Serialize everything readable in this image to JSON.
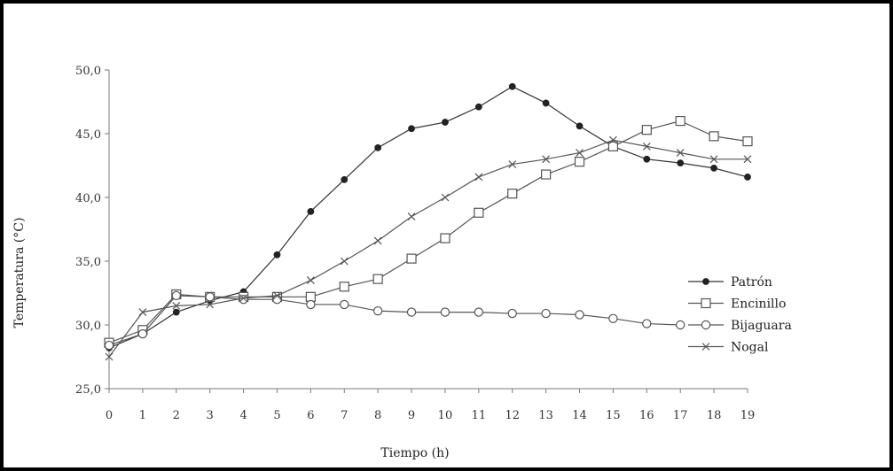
{
  "chart_data": {
    "type": "line",
    "title": "",
    "xlabel": "Tiempo (h)",
    "ylabel": "Temperatura (°C)",
    "x": [
      0,
      1,
      2,
      3,
      4,
      5,
      6,
      7,
      8,
      9,
      10,
      11,
      12,
      13,
      14,
      15,
      16,
      17,
      18,
      19
    ],
    "x_tick_labels": [
      "0",
      "1",
      "2",
      "3",
      "4",
      "5",
      "6",
      "7",
      "8",
      "9",
      "10",
      "11",
      "12",
      "13",
      "14",
      "15",
      "16",
      "17",
      "18",
      "19"
    ],
    "xlim": [
      0,
      19
    ],
    "ylim": [
      25,
      50
    ],
    "y_ticks": [
      25,
      30,
      35,
      40,
      45,
      50
    ],
    "y_tick_labels": [
      "25,0",
      "30,0",
      "35,0",
      "40,0",
      "45,0",
      "50,0"
    ],
    "grid": false,
    "legend_position": "right",
    "series": [
      {
        "name": "Patrón",
        "marker": "filled-circle",
        "color": "#333333",
        "values": [
          28.2,
          29.3,
          31.0,
          31.9,
          32.6,
          35.5,
          38.9,
          41.4,
          43.9,
          45.4,
          45.9,
          47.1,
          48.7,
          47.4,
          45.6,
          44.0,
          43.0,
          42.7,
          42.3,
          41.6
        ]
      },
      {
        "name": "Encinillo",
        "marker": "open-square",
        "color": "#555555",
        "values": [
          28.6,
          29.6,
          32.4,
          32.2,
          32.2,
          32.2,
          32.2,
          33.0,
          33.6,
          35.2,
          36.8,
          38.8,
          40.3,
          41.8,
          42.8,
          44.0,
          45.3,
          46.0,
          44.8,
          44.4
        ]
      },
      {
        "name": "Bijaguara",
        "marker": "open-circle",
        "color": "#555555",
        "values": [
          28.4,
          29.3,
          32.3,
          32.2,
          32.0,
          32.0,
          31.6,
          31.6,
          31.1,
          31.0,
          31.0,
          31.0,
          30.9,
          30.9,
          30.8,
          30.5,
          30.1,
          30.0,
          null,
          null
        ]
      },
      {
        "name": "Nogal",
        "marker": "x",
        "color": "#555555",
        "values": [
          27.5,
          31.0,
          31.5,
          31.6,
          32.1,
          32.3,
          33.5,
          35.0,
          36.6,
          38.5,
          40.0,
          41.6,
          42.6,
          43.0,
          43.5,
          44.5,
          44.0,
          43.5,
          43.0,
          43.0
        ]
      }
    ]
  }
}
